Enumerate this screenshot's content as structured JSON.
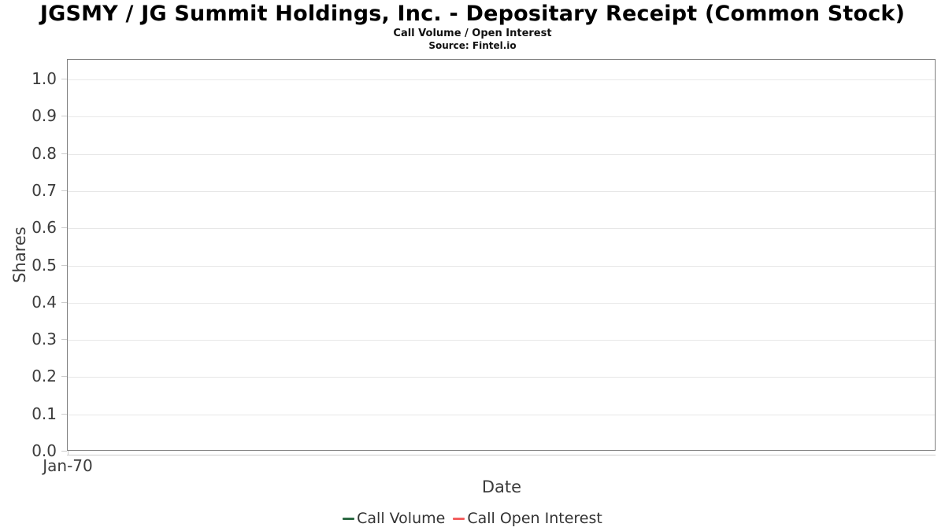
{
  "title": "JGSMY / JG Summit Holdings, Inc. - Depositary Receipt (Common Stock)",
  "subtitle": "Call Volume / Open Interest",
  "source": "Source: Fintel.io",
  "chart_data": {
    "type": "line",
    "title": "JGSMY / JG Summit Holdings, Inc. - Depositary Receipt (Common Stock)",
    "subtitle": "Call Volume / Open Interest",
    "source": "Source: Fintel.io",
    "xlabel": "Date",
    "ylabel": "Shares",
    "ylim": [
      0.0,
      1.0
    ],
    "ytick_step": 0.1,
    "yticks": [
      "1.0",
      "0.9",
      "0.8",
      "0.7",
      "0.6",
      "0.5",
      "0.4",
      "0.3",
      "0.2",
      "0.1",
      "0.0"
    ],
    "xticks": [
      "Jan-70"
    ],
    "grid": "horizontal-only",
    "legend_position": "bottom",
    "plot_background": "#ffffff",
    "border_color": "#808080",
    "gridline_color": "#e7e7e7",
    "tick_color": "#cccccc",
    "series": [
      {
        "name": "Call Volume",
        "color": "#2d6a44",
        "x": [],
        "values": []
      },
      {
        "name": "Call Open Interest",
        "color": "#f35f5f",
        "x": [],
        "values": []
      }
    ]
  }
}
